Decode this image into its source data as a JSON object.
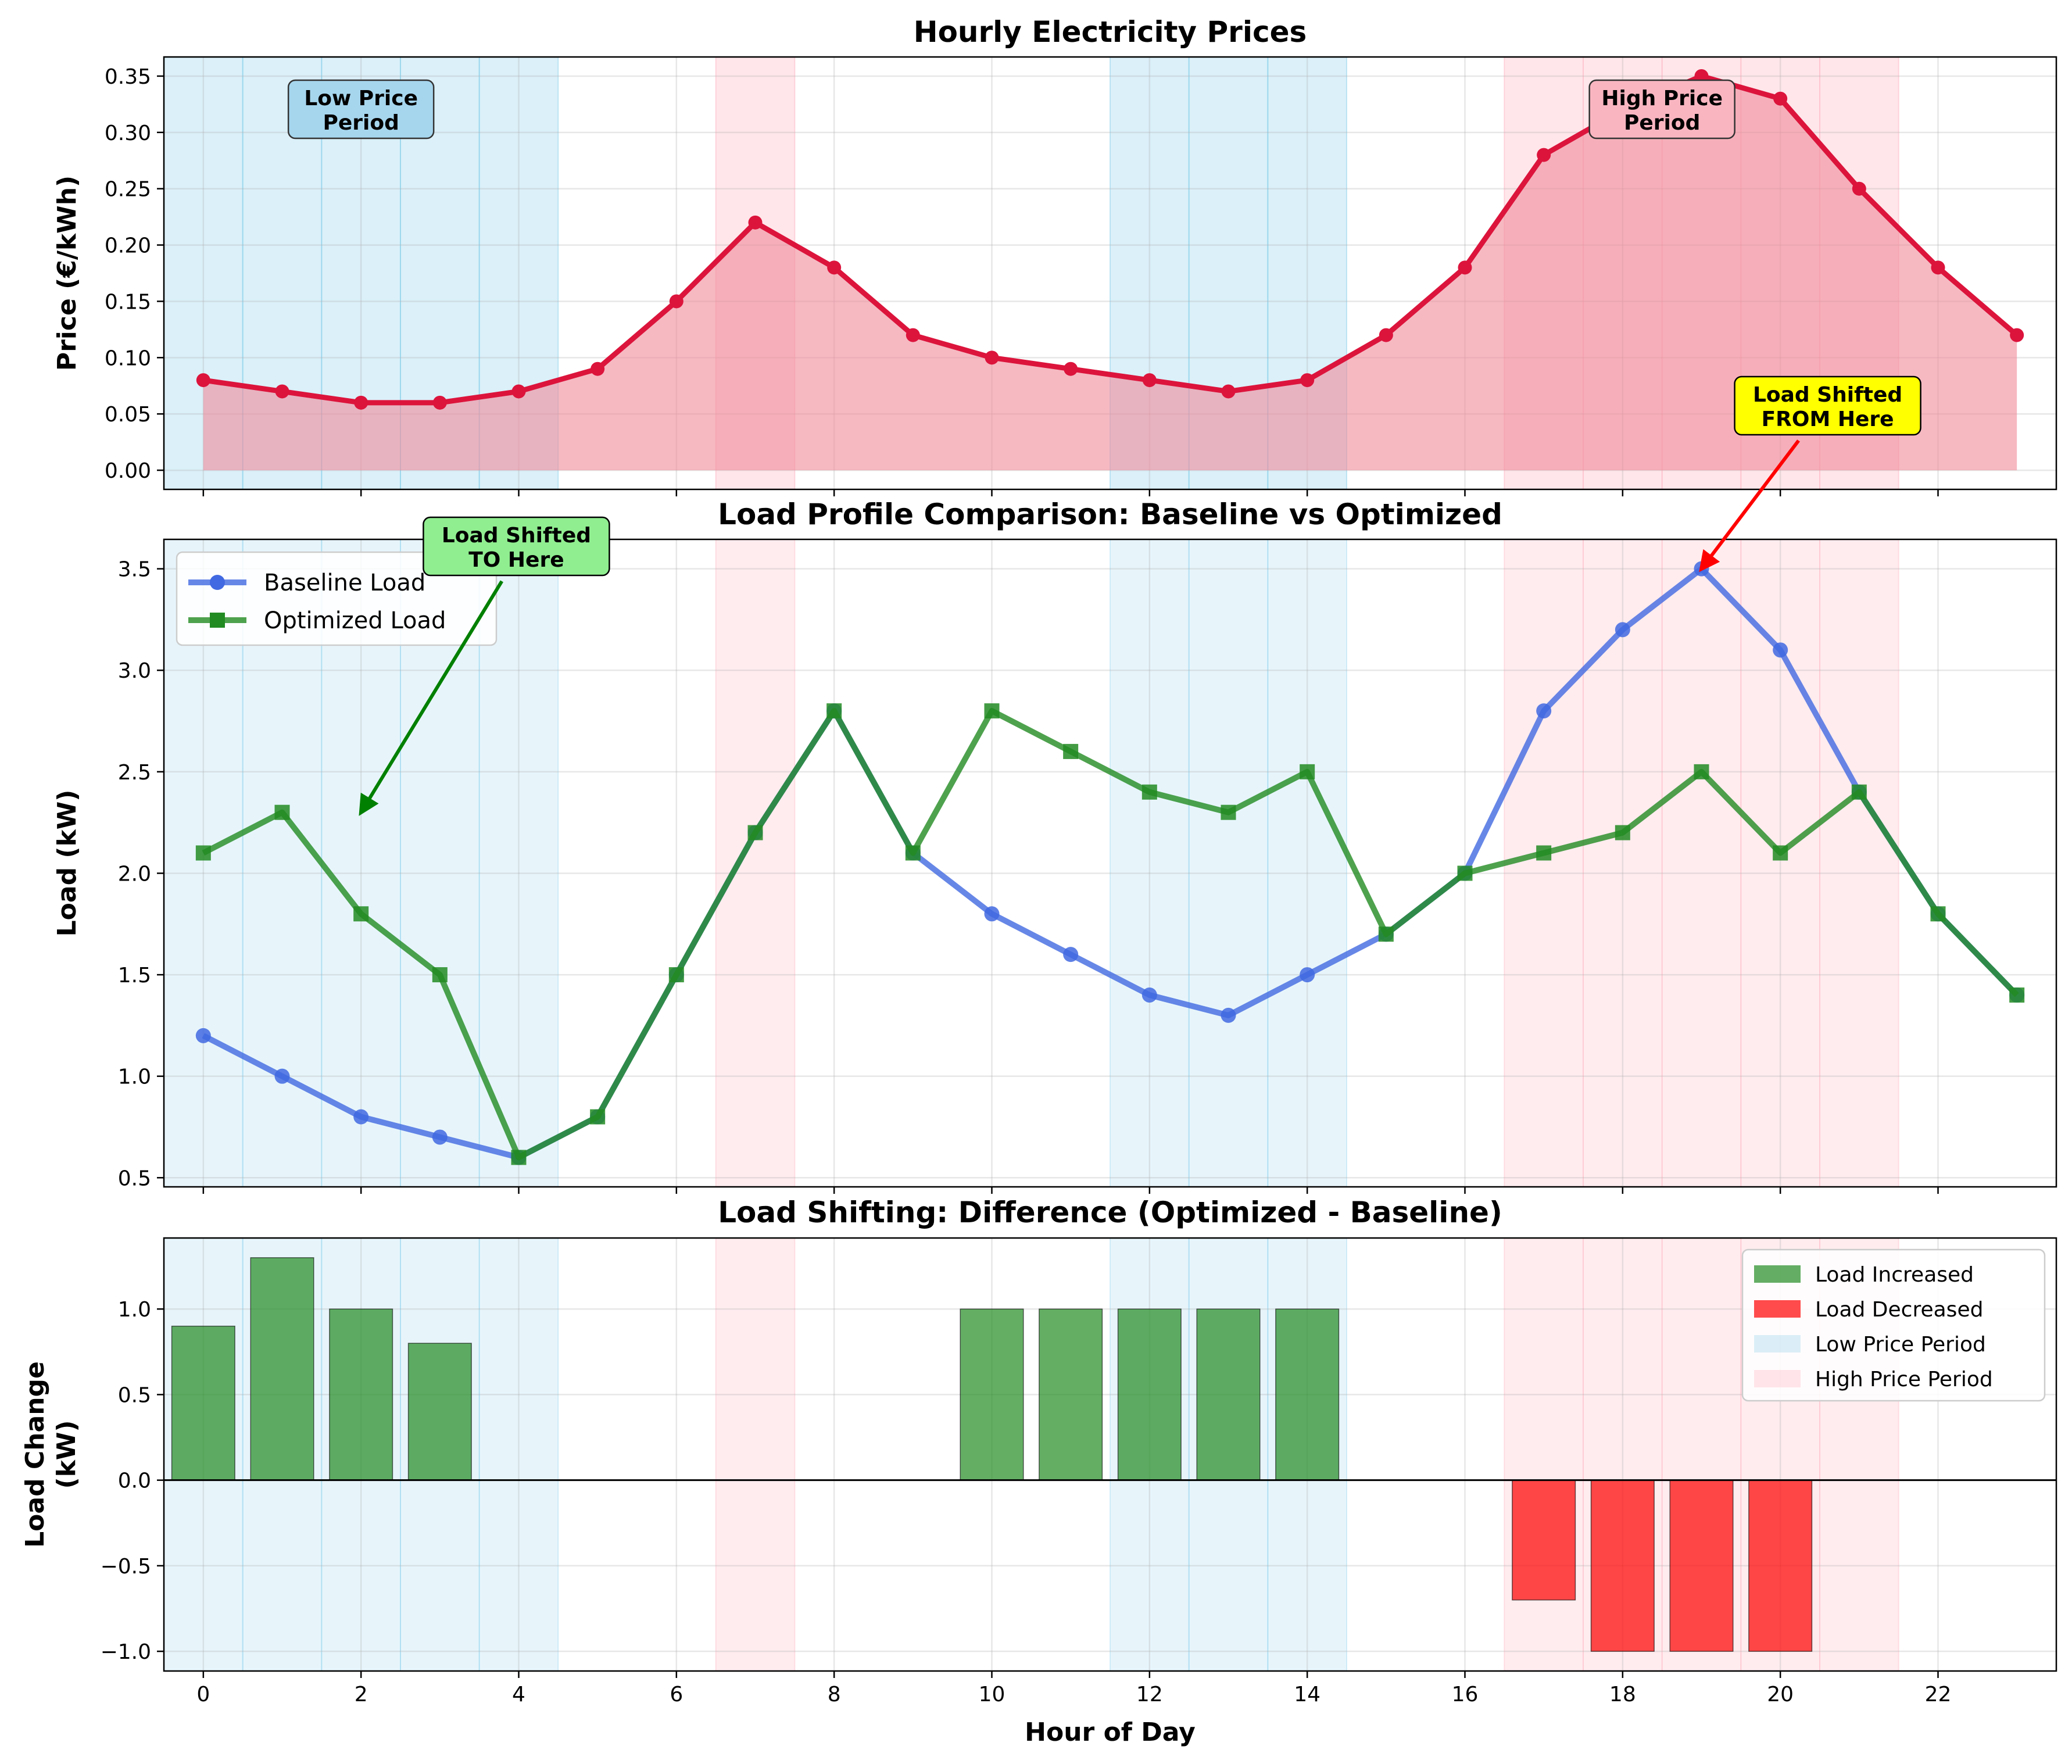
{
  "chart_data": [
    {
      "type": "line",
      "title": "Hourly Electricity Prices",
      "xlabel": "",
      "ylabel": "Price (€/kWh)",
      "xlim": [
        -0.5,
        23.5
      ],
      "ylim": [
        -0.017,
        0.367
      ],
      "yticks": [
        0.0,
        0.05,
        0.1,
        0.15,
        0.2,
        0.25,
        0.3,
        0.35
      ],
      "ytick_labels": [
        "0.00",
        "0.05",
        "0.10",
        "0.15",
        "0.20",
        "0.25",
        "0.30",
        "0.35"
      ],
      "grid": true,
      "x": [
        0,
        1,
        2,
        3,
        4,
        5,
        6,
        7,
        8,
        9,
        10,
        11,
        12,
        13,
        14,
        15,
        16,
        17,
        18,
        19,
        20,
        21,
        22,
        23
      ],
      "series": [
        {
          "values": [
            0.08,
            0.07,
            0.06,
            0.06,
            0.07,
            0.09,
            0.15,
            0.22,
            0.18,
            0.12,
            0.1,
            0.09,
            0.08,
            0.07,
            0.08,
            0.12,
            0.18,
            0.28,
            0.32,
            0.35,
            0.33,
            0.25,
            0.18,
            0.12
          ],
          "color": "#DC143C",
          "fill": "#F08A9A"
        }
      ],
      "annotations": [
        {
          "text": "Low Price\nPeriod",
          "box_color": "#A6D6EE"
        },
        {
          "text": "High Price\nPeriod",
          "box_color": "#F9B6C1"
        }
      ]
    },
    {
      "type": "line",
      "title": "Load Profile Comparison: Baseline vs Optimized",
      "xlabel": "",
      "ylabel": "Load (kW)",
      "xlim": [
        -0.5,
        23.5
      ],
      "ylim": [
        0.455,
        3.645
      ],
      "yticks": [
        0.5,
        1.0,
        1.5,
        2.0,
        2.5,
        3.0,
        3.5
      ],
      "ytick_labels": [
        "0.5",
        "1.0",
        "1.5",
        "2.0",
        "2.5",
        "3.0",
        "3.5"
      ],
      "grid": true,
      "legend_position": "top-left",
      "x": [
        0,
        1,
        2,
        3,
        4,
        5,
        6,
        7,
        8,
        9,
        10,
        11,
        12,
        13,
        14,
        15,
        16,
        17,
        18,
        19,
        20,
        21,
        22,
        23
      ],
      "series": [
        {
          "name": "Baseline Load",
          "marker": "circle",
          "color": "#4169E1",
          "values": [
            1.2,
            1.0,
            0.8,
            0.7,
            0.6,
            0.8,
            1.5,
            2.2,
            2.8,
            2.1,
            1.8,
            1.6,
            1.4,
            1.3,
            1.5,
            1.7,
            2.0,
            2.8,
            3.2,
            3.5,
            3.1,
            2.4,
            1.8,
            1.4
          ]
        },
        {
          "name": "Optimized Load",
          "marker": "square",
          "color": "#228B22",
          "values": [
            2.1,
            2.3,
            1.8,
            1.5,
            0.6,
            0.8,
            1.5,
            2.2,
            2.8,
            2.1,
            2.8,
            2.6,
            2.4,
            2.3,
            2.5,
            1.7,
            2.0,
            2.1,
            2.2,
            2.5,
            2.1,
            2.4,
            1.8,
            1.4
          ]
        }
      ],
      "annotations": [
        {
          "text": "Load Shifted\nFROM Here",
          "x": 19,
          "y": 3.5,
          "box_color": "#FFFF00",
          "arrow_color": "#FF0000"
        },
        {
          "text": "Load Shifted\nTO Here",
          "x": 2,
          "y": 2.3,
          "box_color": "#90EE90",
          "arrow_color": "#008000"
        }
      ]
    },
    {
      "type": "bar",
      "title": "Load Shifting: Difference (Optimized - Baseline)",
      "xlabel": "Hour of Day",
      "ylabel": "Load Change\n(kW)",
      "xlim": [
        -0.5,
        23.5
      ],
      "ylim": [
        -1.115,
        1.415
      ],
      "xticks": [
        0,
        2,
        4,
        6,
        8,
        10,
        12,
        14,
        16,
        18,
        20,
        22
      ],
      "xtick_labels": [
        "0",
        "2",
        "4",
        "6",
        "8",
        "10",
        "12",
        "14",
        "16",
        "18",
        "20",
        "22"
      ],
      "yticks": [
        -1.0,
        -0.5,
        0.0,
        0.5,
        1.0
      ],
      "ytick_labels": [
        "−1.0",
        "−0.5",
        "0.0",
        "0.5",
        "1.0"
      ],
      "grid": true,
      "legend_position": "top-right",
      "x": [
        0,
        1,
        2,
        3,
        10,
        11,
        12,
        13,
        14,
        17,
        18,
        19,
        20
      ],
      "values": [
        0.9,
        1.3,
        1.0,
        0.8,
        1.0,
        1.0,
        1.0,
        1.0,
        1.0,
        -0.7,
        -1.0,
        -1.0,
        -1.0
      ],
      "legend": [
        {
          "label": "Load Increased",
          "color": "#228B22"
        },
        {
          "label": "Load Decreased",
          "color": "#FF0000"
        },
        {
          "label": "Low Price Period",
          "color": "#87CEEB"
        },
        {
          "label": "High Price Period",
          "color": "#FFC0CB"
        }
      ]
    }
  ],
  "shading": {
    "low_price_hours": [
      0,
      1,
      2,
      3,
      4,
      12,
      13,
      14
    ],
    "high_price_hours": [
      7,
      17,
      18,
      19,
      20,
      21
    ],
    "low_color": "#87CEEB",
    "high_color": "#FFC0CB"
  }
}
